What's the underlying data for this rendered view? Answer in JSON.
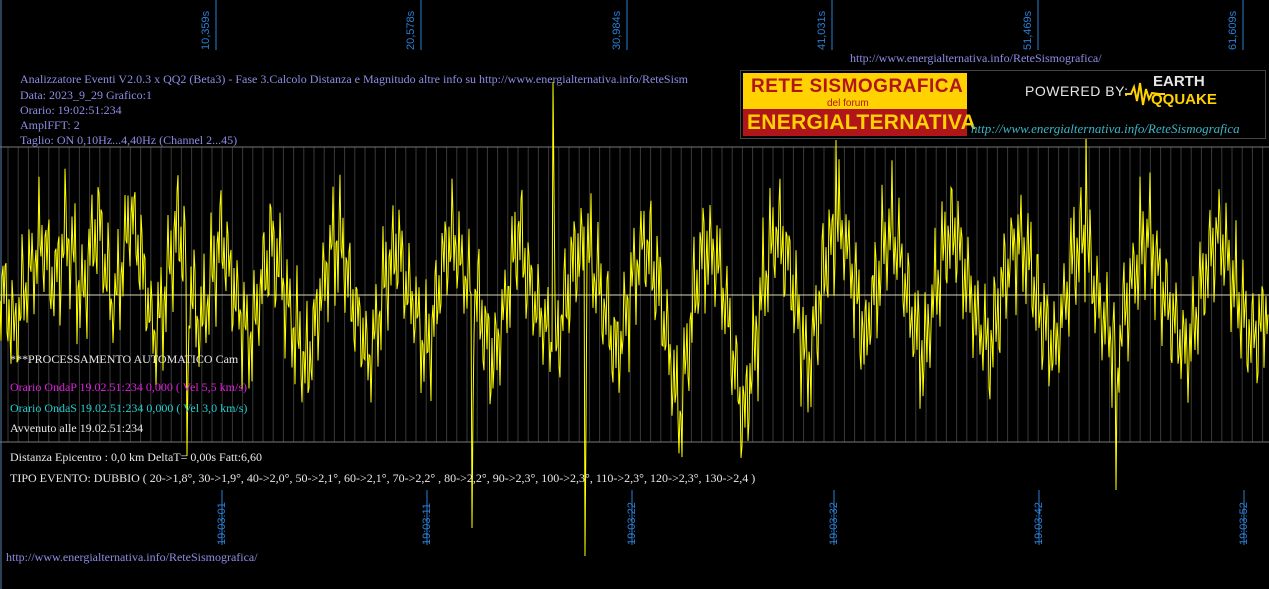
{
  "chart_data": {
    "type": "line",
    "title": "",
    "xlabel": "",
    "ylabel": "",
    "series": [
      {
        "values": [
          264,
          285,
          310,
          345,
          360,
          335,
          305,
          270,
          250,
          230,
          210,
          195,
          225,
          250,
          270,
          240,
          220,
          180,
          205,
          230,
          265,
          300,
          270,
          230,
          200,
          170,
          182,
          245,
          280,
          320,
          300,
          260,
          220,
          170,
          160,
          175,
          215,
          260,
          300,
          340,
          370,
          345,
          310,
          265,
          225,
          195,
          175,
          190,
          235,
          275,
          310,
          345,
          360,
          325,
          285,
          245,
          215,
          200,
          215,
          245,
          280,
          310,
          330,
          350,
          375,
          360,
          330,
          300,
          260,
          225,
          205,
          215,
          245,
          275,
          305,
          335,
          360,
          380,
          410,
          435,
          400,
          360,
          320,
          280,
          250,
          220,
          200,
          195,
          210,
          240,
          270,
          300,
          330,
          350,
          380,
          420,
          390,
          355,
          320,
          280,
          250,
          230,
          210,
          220,
          250,
          280,
          300,
          320,
          345,
          380,
          400,
          370,
          330,
          290,
          250,
          230,
          205,
          190,
          220,
          245,
          260,
          280,
          300,
          305,
          325,
          355,
          390,
          415,
          400,
          360,
          320,
          280,
          240,
          210,
          180,
          225,
          260,
          285,
          310,
          330,
          340,
          360,
          380,
          400,
          380,
          340,
          300,
          270,
          240,
          215,
          200,
          210,
          230,
          255,
          275,
          300,
          330,
          360,
          390,
          410,
          385,
          345,
          300,
          265,
          240,
          215,
          200,
          210,
          235,
          260,
          290,
          330,
          375,
          420,
          470,
          530,
          480,
          410,
          350,
          300,
          260,
          230,
          210,
          205,
          215,
          240,
          270,
          310,
          360,
          410,
          450,
          490,
          520,
          470,
          420,
          370,
          320,
          275,
          240,
          210,
          190,
          180,
          200,
          230,
          260,
          300,
          340,
          380,
          420,
          400,
          360,
          320,
          280,
          245,
          215,
          195,
          180,
          185,
          205,
          230,
          260,
          300,
          340,
          370,
          345,
          305,
          270,
          240,
          215,
          195,
          185,
          200,
          230,
          260,
          300,
          335,
          360,
          385,
          400,
          380,
          340,
          300,
          260,
          225,
          200,
          185,
          185,
          200,
          225,
          255,
          285,
          315,
          340,
          360,
          380,
          395,
          370,
          335,
          300,
          270,
          240,
          215,
          200,
          190,
          205,
          230,
          260,
          290,
          315,
          340,
          360,
          380,
          400,
          370,
          330,
          290,
          255,
          230,
          210,
          190,
          210,
          240,
          270,
          300,
          325,
          345,
          360,
          375,
          390,
          365,
          330,
          300,
          270,
          240,
          215,
          200,
          185,
          200,
          225,
          255,
          285,
          310,
          330,
          350,
          370,
          385,
          400,
          380,
          345,
          310,
          275,
          245,
          220,
          200,
          185,
          195,
          215,
          240,
          270,
          300,
          320,
          340,
          355,
          365,
          370,
          355,
          325,
          300
        ],
        "color": "#ffff00"
      }
    ],
    "x_ticks_top": [
      "10,359s",
      "20,578s",
      "30,984s",
      "41,031s",
      "51,469s",
      "61,609s"
    ],
    "x_ticks_bottom": [
      "19:03:01",
      "19:03:11",
      "19:03:22",
      "19:03:32",
      "19:03:42",
      "19:03:52"
    ],
    "baseline": 295,
    "grid": true
  },
  "info": {
    "line1": "Analizzatore Eventi V2.0.3 x QQ2 (Beta3) - Fase 3.Calcolo Distanza e Magnitudo altre info su http://www.energialternativa.info/ReteSism",
    "line2": "Data: 2023_9_29 Grafico:1",
    "line3": "Orario: 19:02:51:234",
    "line4": "AmplFFT: 2",
    "line5": "Taglio: ON 0,10Hz...4,40Hz       (Channel 2...45)"
  },
  "processing": {
    "title": "***PROCESSAMENTO AUTOMATICO Cam",
    "ondaP": "Orario OndaP 19.02.51:234  0,000 ( Vel 5,5 km/s)",
    "ondaS": "Orario OndaS 19.02.51:234  0,000 ( Vel 3,0 km/s)",
    "avvenuto": "Avvenuto alle 19.02.51:234",
    "distanza": "Distanza Epicentro : 0,0 km DeltaT= 0,00s  Fatt:6,60",
    "tipo": "TIPO EVENTO: DUBBIO ( 20->1,8°, 30->1,9°, 40->2,0°, 50->2,1°, 60->2,1°, 70->2,2° , 80->2,2°, 90->2,3°, 100->2,3°, 110->2,3°, 120->2,3°, 130->2,4 )"
  },
  "urls": {
    "top": "http://www.energialternativa.info/ReteSismografica/",
    "bottom": "http://www.energialternativa.info/ReteSismografica/",
    "banner": "http://www.energialternativa.info/ReteSismografica"
  },
  "banner": {
    "line1": "RETE SISMOGRAFICA",
    "line2": "del forum",
    "line3": "ENERGIALTERNATIVA",
    "powered": "POWERED BY:",
    "logo1": "EARTH",
    "logo2": "QQUAKE"
  },
  "colors": {
    "trace": "#ffff00",
    "info": "#8d8de6",
    "ondaP": "#e020e0",
    "ondaS": "#20d0d0",
    "ticks": "#2a7fd4"
  }
}
